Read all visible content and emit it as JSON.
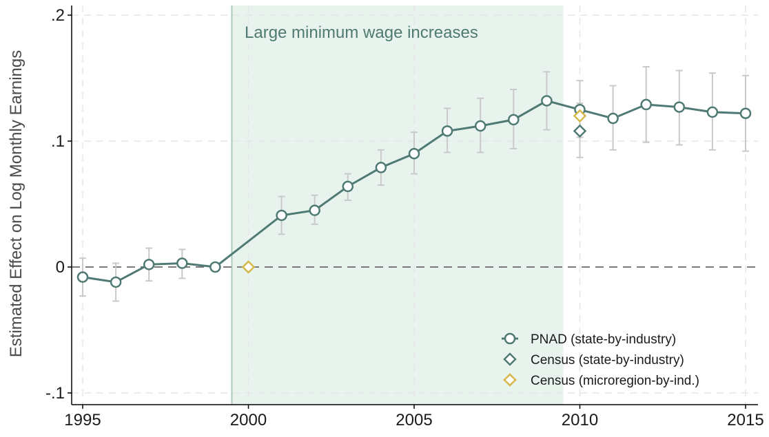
{
  "chart_data": {
    "type": "line",
    "title": "",
    "xlabel": "",
    "ylabel": "Estimated Effect on Log Monthly Earnings",
    "xlim": [
      1995,
      2015
    ],
    "ylim": [
      -0.1,
      0.2
    ],
    "x_ticks": [
      1995,
      2000,
      2005,
      2010,
      2015
    ],
    "y_ticks": [
      {
        "value": 0.2,
        "label": ".2"
      },
      {
        "value": 0.1,
        "label": ".1"
      },
      {
        "value": 0,
        "label": "0"
      },
      {
        "value": -0.1,
        "label": "-.1"
      }
    ],
    "grid": true,
    "reference_line": 0,
    "shaded_region": {
      "x_start": 1999.5,
      "x_end": 2009.5,
      "label": "Large minimum wage increases"
    },
    "legend_position": "bottom-right",
    "series": [
      {
        "name": "PNAD (state-by-industry)",
        "marker": "circle",
        "color": "#4e7a73",
        "x": [
          1995,
          1996,
          1997,
          1998,
          1999,
          2001,
          2002,
          2003,
          2004,
          2005,
          2006,
          2007,
          2008,
          2009,
          2010,
          2011,
          2012,
          2013,
          2014,
          2015
        ],
        "y": [
          -0.008,
          -0.012,
          0.002,
          0.003,
          0.0,
          0.041,
          0.045,
          0.064,
          0.079,
          0.09,
          0.108,
          0.112,
          0.117,
          0.132,
          0.125,
          0.118,
          0.129,
          0.127,
          0.123,
          0.122
        ],
        "ci_low": [
          -0.023,
          -0.027,
          -0.011,
          -0.009,
          0.0,
          0.026,
          0.034,
          0.053,
          0.065,
          0.074,
          0.091,
          0.091,
          0.094,
          0.109,
          0.103,
          0.093,
          0.099,
          0.097,
          0.093,
          0.092
        ],
        "ci_high": [
          0.007,
          0.003,
          0.015,
          0.014,
          0.0,
          0.056,
          0.057,
          0.074,
          0.093,
          0.107,
          0.126,
          0.134,
          0.141,
          0.155,
          0.148,
          0.144,
          0.159,
          0.156,
          0.154,
          0.152
        ]
      },
      {
        "name": "Census (state-by-industry)",
        "marker": "diamond",
        "color": "#4e7a73",
        "x": [
          2010
        ],
        "y": [
          0.108
        ],
        "ci_low": [
          0.087
        ],
        "ci_high": [
          0.13
        ]
      },
      {
        "name": "Census (microregion-by-ind.)",
        "marker": "diamond",
        "color": "#d4b84a",
        "x": [
          2000,
          2010
        ],
        "y": [
          0.0,
          0.12
        ]
      }
    ]
  },
  "colors": {
    "line": "#4e7a73",
    "census_state": "#4e7a73",
    "census_micro": "#d4b84a",
    "errorbar": "#c9c9c9",
    "shade": "#e9f3ee",
    "shade_edge": "#a9cbb8",
    "annotation": "#4e7a73",
    "grid": "#e6e6e6",
    "zero_line": "#7a7a7a"
  }
}
